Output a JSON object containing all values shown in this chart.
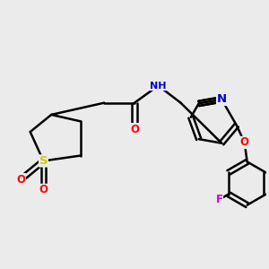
{
  "bg_color": "#ebebeb",
  "bond_color": "#000000",
  "bond_width": 1.8,
  "atom_colors": {
    "N": "#0000cc",
    "O": "#ff0000",
    "S": "#cccc00",
    "F": "#cc00cc",
    "C": "#000000",
    "H": "#000000"
  },
  "font_size": 8.5,
  "fig_size": [
    3.0,
    3.0
  ],
  "dpi": 100
}
